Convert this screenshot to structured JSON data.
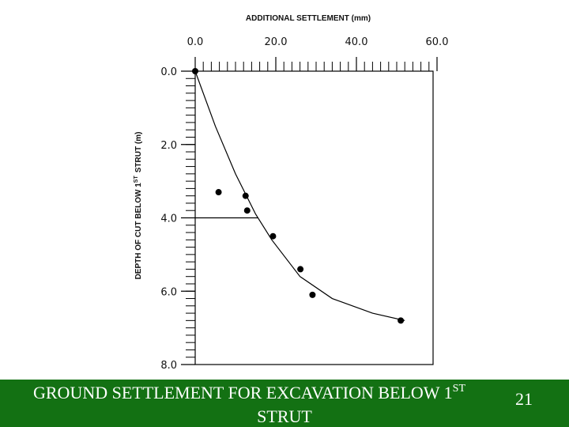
{
  "chart_data": {
    "type": "scatter",
    "xlabel": "ADDITIONAL SETTLEMENT (mm)",
    "ylabel": {
      "text": "DEPTH OF CUT BELOW 1",
      "superscript": "ST",
      "rest": "STRUT (m)"
    },
    "xlim": [
      0,
      60
    ],
    "ylim": [
      0,
      8
    ],
    "y_inverted": true,
    "x_axis_side": "top",
    "xticks": [
      {
        "value": 0,
        "label": "0.0"
      },
      {
        "value": 20,
        "label": "20.0"
      },
      {
        "value": 40,
        "label": "40.0"
      },
      {
        "value": 60,
        "label": "60.0"
      }
    ],
    "yticks": [
      {
        "value": 0,
        "label": "0.0"
      },
      {
        "value": 2,
        "label": "2.0"
      },
      {
        "value": 4,
        "label": "4.0"
      },
      {
        "value": 6,
        "label": "6.0"
      },
      {
        "value": 8,
        "label": "8.0"
      }
    ],
    "xminorticks": [
      0,
      2,
      4,
      6,
      8,
      10,
      12,
      14,
      16,
      18,
      20,
      22,
      24,
      26,
      28,
      30,
      32,
      34,
      36,
      38,
      40,
      42,
      44,
      46,
      48,
      50,
      52,
      54,
      56,
      58,
      60
    ],
    "yminorticks": [
      0,
      0.2,
      0.4,
      0.6,
      0.8,
      1,
      1.2,
      1.4,
      1.6,
      1.8,
      2,
      2.2,
      2.4,
      2.6,
      2.8,
      3,
      3.2,
      3.4,
      3.6,
      3.8,
      4,
      4.2,
      4.4,
      4.6,
      4.8,
      5,
      5.2,
      5.4,
      5.6,
      5.8,
      6,
      6.2,
      6.4,
      6.6,
      6.8,
      7,
      7.2,
      7.4,
      7.6,
      7.8,
      8
    ],
    "color": "#000000",
    "points": {
      "x": [
        0,
        5.8,
        12.5,
        12.9,
        19.3,
        26.1,
        29.1,
        51
      ],
      "values": [
        0,
        3.3,
        3.4,
        3.8,
        4.5,
        5.4,
        6.1,
        6.8
      ]
    },
    "curve": {
      "x": [
        0,
        5,
        10,
        15,
        19,
        26,
        34,
        44,
        52
      ],
      "values": [
        0,
        1.5,
        2.8,
        3.9,
        4.6,
        5.6,
        6.2,
        6.6,
        6.8
      ]
    },
    "reference_line": {
      "x": [
        0,
        15.5
      ],
      "values": [
        4,
        4
      ]
    }
  },
  "footer": {
    "text": "GROUND SETTLEMENT FOR EXCAVATION BELOW 1",
    "superscript": "ST",
    "line2": "STRUT",
    "slide_number": "21"
  }
}
